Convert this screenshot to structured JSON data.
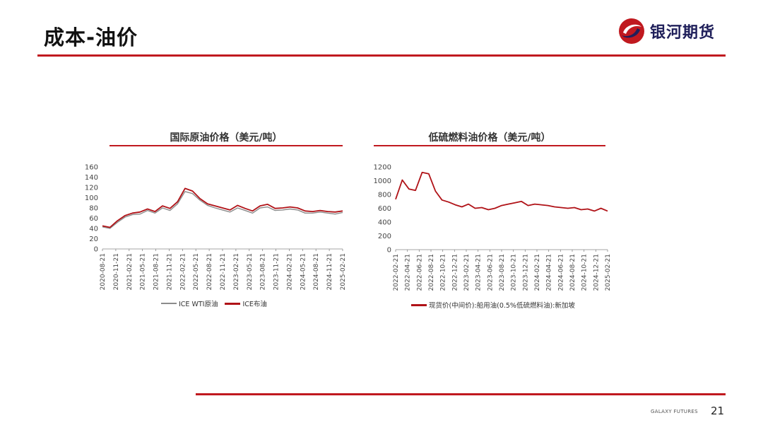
{
  "slide": {
    "title": "成本-油价",
    "brand_name": "银河期货",
    "footer_brand": "GALAXY FUTURES",
    "page_number": "21"
  },
  "colors": {
    "accent_red": "#c0191f",
    "wti_grey": "#8c8c8c",
    "brent_red": "#b01217",
    "logo_blue": "#1f1f5a"
  },
  "chart_data": [
    {
      "type": "line",
      "title": "国际原油价格（美元/吨）",
      "ylim": [
        0,
        160
      ],
      "yticks": [
        0,
        20,
        40,
        60,
        80,
        100,
        120,
        140,
        160
      ],
      "x_ticks": [
        "2020-08-21",
        "2020-11-21",
        "2021-02-21",
        "2021-05-21",
        "2021-08-21",
        "2021-11-21",
        "2022-02-21",
        "2022-05-21",
        "2022-08-21",
        "2022-11-21",
        "2023-02-21",
        "2023-05-21",
        "2023-08-21",
        "2023-11-21",
        "2024-02-21",
        "2024-05-21",
        "2024-08-21",
        "2024-11-21",
        "2025-02-21"
      ],
      "legend_position": "bottom",
      "series": [
        {
          "name": "ICE WTI原油",
          "color": "#8c8c8c",
          "values": [
            43,
            40,
            52,
            62,
            67,
            68,
            75,
            70,
            80,
            75,
            88,
            112,
            108,
            95,
            85,
            80,
            76,
            72,
            80,
            75,
            70,
            80,
            82,
            75,
            76,
            78,
            76,
            70,
            70,
            72,
            70,
            68,
            71
          ]
        },
        {
          "name": "ICE布油",
          "color": "#b01217",
          "values": [
            45,
            42,
            55,
            65,
            70,
            72,
            78,
            73,
            84,
            79,
            92,
            118,
            113,
            98,
            88,
            84,
            80,
            76,
            85,
            79,
            74,
            84,
            87,
            79,
            80,
            82,
            80,
            74,
            73,
            75,
            73,
            72,
            74
          ]
        }
      ]
    },
    {
      "type": "line",
      "title": "低硫燃料油价格（美元/吨）",
      "ylim": [
        0,
        1200
      ],
      "yticks": [
        0,
        200,
        400,
        600,
        800,
        1000,
        1200
      ],
      "x_ticks": [
        "2022-02-21",
        "2022-04-21",
        "2022-06-21",
        "2022-08-21",
        "2022-10-21",
        "2022-12-21",
        "2023-02-21",
        "2023-04-21",
        "2023-06-21",
        "2023-08-21",
        "2023-10-21",
        "2023-12-21",
        "2024-02-21",
        "2024-04-21",
        "2024-06-21",
        "2024-08-21",
        "2024-10-21",
        "2024-12-21",
        "2025-02-21"
      ],
      "legend_position": "bottom",
      "series": [
        {
          "name": "现货价(中间价):船用油(0.5%低硫燃料油):新加坡",
          "color": "#b01217",
          "values": [
            730,
            1010,
            880,
            860,
            1120,
            1100,
            850,
            720,
            690,
            650,
            620,
            660,
            600,
            610,
            580,
            600,
            640,
            660,
            680,
            700,
            640,
            660,
            650,
            640,
            620,
            610,
            600,
            610,
            580,
            590,
            560,
            600,
            560
          ]
        }
      ]
    }
  ]
}
